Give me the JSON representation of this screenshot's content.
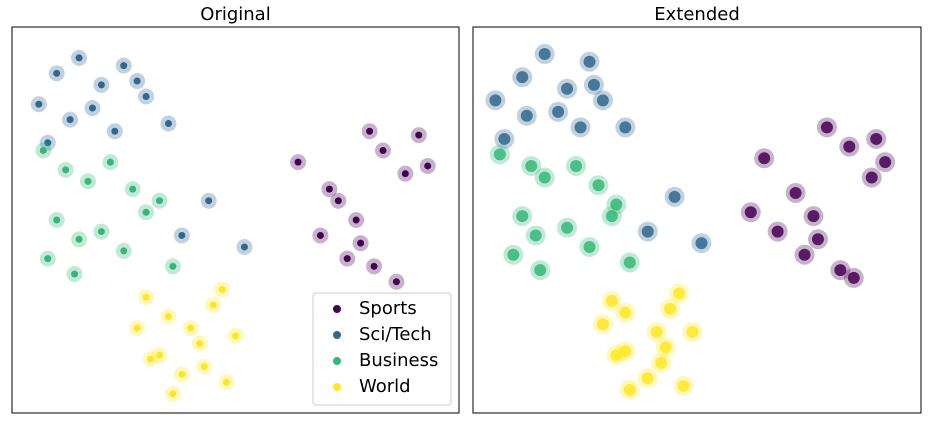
{
  "chart_data": [
    {
      "type": "scatter",
      "title": "Original",
      "xlim": [
        0,
        100
      ],
      "ylim": [
        0,
        100
      ],
      "legend": "lower right",
      "series": [
        {
          "name": "Sports",
          "color": "#440154",
          "x": [
            80,
            93,
            71,
            77,
            69,
            75,
            81,
            86,
            64,
            83,
            78,
            88,
            73,
            91
          ],
          "values": [
            73,
            64,
            58,
            50,
            46,
            40,
            38,
            34,
            65,
            68,
            44,
            62,
            55,
            72
          ]
        },
        {
          "name": "Sci/Tech",
          "color": "#31688e",
          "x": [
            6,
            10,
            15,
            20,
            25,
            30,
            13,
            18,
            23,
            8,
            28,
            44,
            38,
            52,
            35
          ],
          "values": [
            80,
            88,
            92,
            85,
            90,
            82,
            76,
            79,
            73,
            70,
            86,
            55,
            46,
            43,
            75
          ]
        },
        {
          "name": "Business",
          "color": "#35b779",
          "x": [
            7,
            12,
            17,
            22,
            27,
            33,
            10,
            15,
            20,
            25,
            30,
            8,
            36,
            14
          ],
          "values": [
            68,
            63,
            60,
            65,
            58,
            55,
            50,
            45,
            47,
            42,
            52,
            40,
            38,
            36
          ]
        },
        {
          "name": "World",
          "color": "#fde725",
          "x": [
            30,
            35,
            40,
            45,
            50,
            33,
            38,
            43,
            48,
            28,
            36,
            42,
            47,
            31
          ],
          "values": [
            30,
            25,
            22,
            28,
            20,
            15,
            10,
            12,
            8,
            22,
            5,
            18,
            32,
            14
          ]
        }
      ]
    },
    {
      "type": "scatter",
      "title": "Extended",
      "xlim": [
        0,
        100
      ],
      "ylim": [
        0,
        100
      ],
      "series": [
        {
          "name": "Sports",
          "color": "#440154",
          "x": [
            79,
            92,
            72,
            76,
            68,
            74,
            82,
            85,
            65,
            84,
            77,
            89,
            62,
            90
          ],
          "values": [
            74,
            65,
            57,
            51,
            47,
            41,
            37,
            35,
            66,
            69,
            45,
            61,
            52,
            71
          ]
        },
        {
          "name": "Sci/Tech",
          "color": "#31688e",
          "x": [
            5,
            11,
            16,
            21,
            26,
            29,
            12,
            19,
            24,
            7,
            27,
            45,
            39,
            51,
            34
          ],
          "values": [
            81,
            87,
            93,
            84,
            91,
            81,
            77,
            78,
            74,
            71,
            85,
            56,
            47,
            44,
            74
          ]
        },
        {
          "name": "Business",
          "color": "#35b779",
          "x": [
            6,
            13,
            16,
            23,
            28,
            32,
            11,
            14,
            21,
            26,
            31,
            9,
            35,
            15
          ],
          "values": [
            67,
            64,
            61,
            64,
            59,
            54,
            51,
            46,
            48,
            43,
            51,
            41,
            39,
            37
          ]
        },
        {
          "name": "World",
          "color": "#fde725",
          "x": [
            31,
            34,
            41,
            44,
            49,
            34,
            39,
            42,
            47,
            29,
            35,
            43,
            46,
            32
          ],
          "values": [
            29,
            26,
            21,
            27,
            21,
            16,
            9,
            13,
            7,
            23,
            6,
            17,
            31,
            15
          ]
        }
      ]
    }
  ]
}
